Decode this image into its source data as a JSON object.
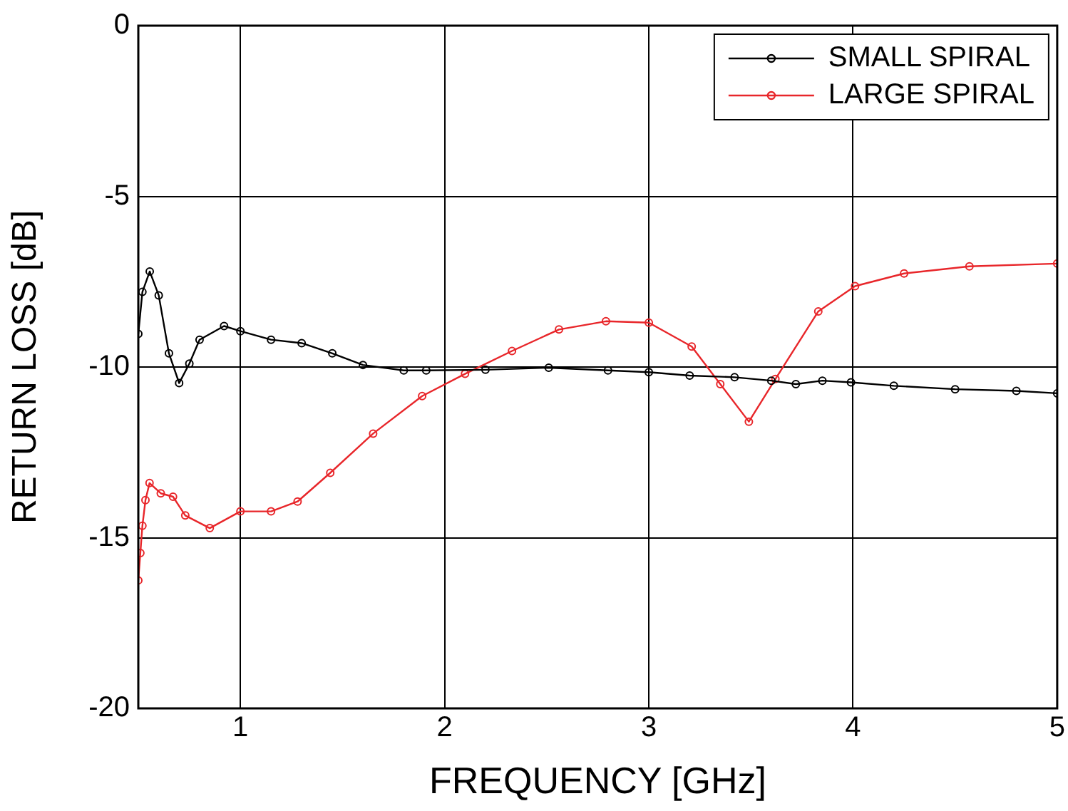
{
  "chart_data": {
    "type": "line",
    "xlabel": "FREQUENCY [GHz]",
    "ylabel": "RETURN LOSS [dB]",
    "xlim": [
      0.5,
      5
    ],
    "xticks": [
      1,
      2,
      3,
      4,
      5
    ],
    "ylim": [
      -20,
      0
    ],
    "yticks": [
      -20,
      -15,
      -10,
      -5,
      0
    ],
    "grid": true,
    "legend": "top right",
    "marker": "circle",
    "line_style": "solid",
    "series": [
      {
        "name": "SMALL SPIRAL",
        "color": "#000000",
        "x": [
          0.5,
          0.52,
          0.556,
          0.6,
          0.65,
          0.7,
          0.75,
          0.8,
          0.92,
          1.0,
          1.15,
          1.3,
          1.45,
          1.6,
          1.8,
          1.91,
          2.2,
          2.51,
          2.8,
          3.0,
          3.2,
          3.42,
          3.6,
          3.72,
          3.85,
          3.99,
          4.2,
          4.5,
          4.8,
          5.0
        ],
        "values": [
          -9.03,
          -7.8,
          -7.2,
          -7.9,
          -9.6,
          -10.47,
          -9.9,
          -9.2,
          -8.8,
          -8.95,
          -9.2,
          -9.3,
          -9.6,
          -9.94,
          -10.1,
          -10.1,
          -10.08,
          -10.02,
          -10.1,
          -10.15,
          -10.25,
          -10.3,
          -10.4,
          -10.5,
          -10.4,
          -10.45,
          -10.55,
          -10.65,
          -10.7,
          -10.77
        ]
      },
      {
        "name": "LARGE SPIRAL",
        "color": "#e8262a",
        "x": [
          0.5,
          0.51,
          0.52,
          0.535,
          0.555,
          0.61,
          0.67,
          0.73,
          0.85,
          1.0,
          1.15,
          1.28,
          1.44,
          1.65,
          1.89,
          2.1,
          2.33,
          2.56,
          2.79,
          3.0,
          3.21,
          3.35,
          3.49,
          3.62,
          3.83,
          4.01,
          4.25,
          4.57,
          5.0
        ],
        "values": [
          -16.25,
          -15.45,
          -14.65,
          -13.9,
          -13.4,
          -13.7,
          -13.8,
          -14.35,
          -14.72,
          -14.23,
          -14.23,
          -13.94,
          -13.1,
          -11.95,
          -10.85,
          -10.2,
          -9.53,
          -8.9,
          -8.66,
          -8.7,
          -9.4,
          -10.5,
          -11.6,
          -10.35,
          -8.37,
          -7.63,
          -7.26,
          -7.05,
          -6.97
        ]
      }
    ]
  }
}
